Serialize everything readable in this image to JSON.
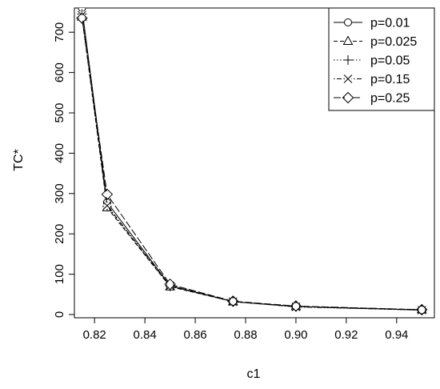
{
  "chart_data": {
    "type": "line",
    "xlabel": "c1",
    "ylabel": "TC*",
    "x": [
      0.815,
      0.825,
      0.85,
      0.875,
      0.9,
      0.95
    ],
    "xlim": [
      0.812,
      0.955
    ],
    "ylim": [
      -8,
      760
    ],
    "xticks": [
      "0.82",
      "0.84",
      "0.86",
      "0.88",
      "0.90",
      "0.92",
      "0.94"
    ],
    "xtick_values": [
      0.82,
      0.84,
      0.86,
      0.88,
      0.9,
      0.92,
      0.94
    ],
    "yticks": [
      "0",
      "100",
      "200",
      "300",
      "400",
      "500",
      "600",
      "700"
    ],
    "ytick_values": [
      0,
      100,
      200,
      300,
      400,
      500,
      600,
      700
    ],
    "grid": false,
    "legend_position": "top-right",
    "series": [
      {
        "name": "p=0.01",
        "marker": "circle",
        "dash": "solid",
        "values": [
          760,
          278,
          72,
          32,
          20,
          11
        ]
      },
      {
        "name": "p=0.025",
        "marker": "triangle",
        "dash": "dashed",
        "values": [
          738,
          265,
          69,
          32,
          20,
          12
        ]
      },
      {
        "name": "p=0.05",
        "marker": "plus",
        "dash": "dotted",
        "values": [
          745,
          268,
          70,
          32,
          19,
          11
        ]
      },
      {
        "name": "p=0.15",
        "marker": "cross",
        "dash": "dotdash",
        "values": [
          742,
          270,
          71,
          32,
          19,
          11
        ]
      },
      {
        "name": "p=0.25",
        "marker": "diamond",
        "dash": "longdash",
        "values": [
          735,
          298,
          75,
          33,
          21,
          12
        ]
      }
    ]
  }
}
